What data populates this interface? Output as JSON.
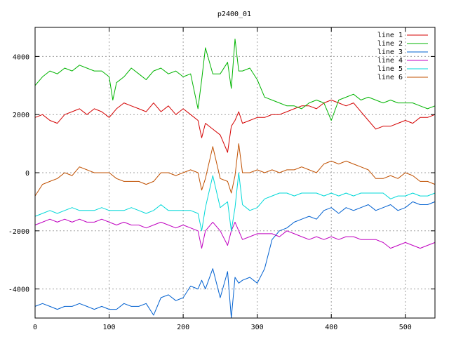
{
  "chart_data": {
    "type": "line",
    "title": "p2400_01",
    "xlabel": "",
    "ylabel": "",
    "xlim": [
      0,
      540
    ],
    "ylim": [
      -5000,
      5000
    ],
    "x_ticks": [
      0,
      100,
      200,
      300,
      400,
      500
    ],
    "y_ticks": [
      -4000,
      -2000,
      0,
      2000,
      4000
    ],
    "x_tick_labels": [
      "0",
      "100",
      "200",
      "300",
      "400",
      "500"
    ],
    "y_tick_labels": [
      "-4000",
      "-2000",
      "0",
      "2000",
      "4000"
    ],
    "grid": true,
    "legend_position": "top-right",
    "series": [
      {
        "name": "line 1",
        "color": "#d40000",
        "x": [
          0,
          10,
          20,
          30,
          40,
          50,
          60,
          70,
          80,
          90,
          100,
          110,
          120,
          130,
          140,
          150,
          160,
          170,
          180,
          190,
          200,
          210,
          220,
          225,
          230,
          240,
          250,
          260,
          265,
          270,
          275,
          280,
          290,
          300,
          310,
          320,
          330,
          340,
          350,
          360,
          370,
          380,
          390,
          400,
          410,
          420,
          430,
          440,
          450,
          460,
          470,
          480,
          490,
          500,
          510,
          520,
          530,
          540
        ],
        "values": [
          1900,
          2000,
          1800,
          1700,
          2000,
          2100,
          2200,
          2000,
          2200,
          2100,
          1900,
          2200,
          2400,
          2300,
          2200,
          2100,
          2400,
          2100,
          2300,
          2000,
          2200,
          2000,
          1800,
          1200,
          1700,
          1500,
          1300,
          700,
          1600,
          1800,
          2100,
          1700,
          1800,
          1900,
          1900,
          2000,
          2000,
          2100,
          2200,
          2300,
          2300,
          2200,
          2400,
          2500,
          2400,
          2300,
          2400,
          2100,
          1800,
          1500,
          1600,
          1600,
          1700,
          1800,
          1700,
          1900,
          1900,
          2000
        ]
      },
      {
        "name": "line 2",
        "color": "#00b400",
        "x": [
          0,
          10,
          20,
          30,
          40,
          50,
          60,
          70,
          80,
          90,
          100,
          105,
          110,
          120,
          130,
          140,
          150,
          160,
          170,
          180,
          190,
          200,
          210,
          220,
          225,
          230,
          240,
          250,
          260,
          265,
          270,
          275,
          280,
          290,
          300,
          310,
          320,
          330,
          340,
          350,
          360,
          370,
          380,
          390,
          400,
          410,
          420,
          430,
          440,
          450,
          460,
          470,
          480,
          490,
          500,
          510,
          520,
          530,
          540
        ],
        "values": [
          3000,
          3300,
          3500,
          3400,
          3600,
          3500,
          3700,
          3600,
          3500,
          3500,
          3300,
          2500,
          3100,
          3300,
          3600,
          3400,
          3200,
          3500,
          3600,
          3400,
          3500,
          3300,
          3400,
          2200,
          3200,
          4300,
          3400,
          3400,
          3800,
          2900,
          4600,
          3500,
          3500,
          3600,
          3200,
          2600,
          2500,
          2400,
          2300,
          2300,
          2200,
          2400,
          2500,
          2400,
          1800,
          2500,
          2600,
          2700,
          2500,
          2600,
          2500,
          2400,
          2500,
          2400,
          2400,
          2400,
          2300,
          2200,
          2300
        ]
      },
      {
        "name": "line 3",
        "color": "#0060d0",
        "x": [
          0,
          10,
          20,
          30,
          40,
          50,
          60,
          70,
          80,
          90,
          100,
          110,
          120,
          130,
          140,
          150,
          160,
          170,
          180,
          190,
          200,
          210,
          220,
          225,
          230,
          240,
          250,
          260,
          265,
          270,
          275,
          280,
          290,
          300,
          310,
          320,
          330,
          340,
          350,
          360,
          370,
          380,
          390,
          400,
          410,
          420,
          430,
          440,
          450,
          460,
          470,
          480,
          490,
          500,
          510,
          520,
          530,
          540
        ],
        "values": [
          -4600,
          -4500,
          -4600,
          -4700,
          -4600,
          -4600,
          -4500,
          -4600,
          -4700,
          -4600,
          -4700,
          -4700,
          -4500,
          -4600,
          -4600,
          -4500,
          -4900,
          -4300,
          -4200,
          -4400,
          -4300,
          -3900,
          -4000,
          -3700,
          -4000,
          -3300,
          -4300,
          -3400,
          -5000,
          -3600,
          -3800,
          -3700,
          -3600,
          -3800,
          -3300,
          -2300,
          -2000,
          -1900,
          -1700,
          -1600,
          -1500,
          -1600,
          -1300,
          -1200,
          -1400,
          -1200,
          -1300,
          -1200,
          -1100,
          -1300,
          -1200,
          -1100,
          -1300,
          -1200,
          -1000,
          -1100,
          -1100,
          -1000
        ]
      },
      {
        "name": "line 4",
        "color": "#c000c0",
        "x": [
          0,
          10,
          20,
          30,
          40,
          50,
          60,
          70,
          80,
          90,
          100,
          110,
          120,
          130,
          140,
          150,
          160,
          170,
          180,
          190,
          200,
          210,
          220,
          225,
          230,
          240,
          250,
          260,
          265,
          270,
          275,
          280,
          290,
          300,
          310,
          320,
          330,
          340,
          350,
          360,
          370,
          380,
          390,
          400,
          410,
          420,
          430,
          440,
          450,
          460,
          470,
          480,
          490,
          500,
          510,
          520,
          530,
          540
        ],
        "values": [
          -1800,
          -1700,
          -1600,
          -1700,
          -1600,
          -1700,
          -1600,
          -1700,
          -1700,
          -1600,
          -1700,
          -1800,
          -1700,
          -1800,
          -1800,
          -1900,
          -1800,
          -1700,
          -1800,
          -1900,
          -1800,
          -1900,
          -2000,
          -2600,
          -2000,
          -1700,
          -2000,
          -2500,
          -2000,
          -1700,
          -2000,
          -2300,
          -2200,
          -2100,
          -2100,
          -2100,
          -2200,
          -2000,
          -2100,
          -2200,
          -2300,
          -2200,
          -2300,
          -2200,
          -2300,
          -2200,
          -2200,
          -2300,
          -2300,
          -2300,
          -2400,
          -2600,
          -2500,
          -2400,
          -2500,
          -2600,
          -2500,
          -2400
        ]
      },
      {
        "name": "line 5",
        "color": "#00d8d8",
        "x": [
          0,
          10,
          20,
          30,
          40,
          50,
          60,
          70,
          80,
          90,
          100,
          110,
          120,
          130,
          140,
          150,
          160,
          170,
          180,
          190,
          200,
          210,
          220,
          225,
          230,
          240,
          250,
          260,
          265,
          270,
          275,
          280,
          290,
          300,
          310,
          320,
          330,
          340,
          350,
          360,
          370,
          380,
          390,
          400,
          410,
          420,
          430,
          440,
          450,
          460,
          470,
          480,
          490,
          500,
          510,
          520,
          530,
          540
        ],
        "values": [
          -1500,
          -1400,
          -1300,
          -1400,
          -1300,
          -1200,
          -1300,
          -1300,
          -1300,
          -1200,
          -1300,
          -1300,
          -1300,
          -1200,
          -1300,
          -1400,
          -1300,
          -1100,
          -1300,
          -1300,
          -1300,
          -1300,
          -1400,
          -2000,
          -1200,
          -100,
          -1200,
          -1000,
          -2000,
          -1200,
          0,
          -1100,
          -1300,
          -1200,
          -900,
          -800,
          -700,
          -700,
          -800,
          -700,
          -700,
          -700,
          -800,
          -700,
          -800,
          -700,
          -800,
          -700,
          -700,
          -700,
          -700,
          -900,
          -800,
          -800,
          -700,
          -800,
          -800,
          -700
        ]
      },
      {
        "name": "line 6",
        "color": "#c05000",
        "x": [
          0,
          10,
          20,
          30,
          40,
          50,
          60,
          70,
          80,
          90,
          100,
          110,
          120,
          130,
          140,
          150,
          160,
          170,
          180,
          190,
          200,
          210,
          220,
          225,
          230,
          240,
          250,
          260,
          265,
          270,
          275,
          280,
          290,
          300,
          310,
          320,
          330,
          340,
          350,
          360,
          370,
          380,
          390,
          400,
          410,
          420,
          430,
          440,
          450,
          460,
          470,
          480,
          490,
          500,
          510,
          520,
          530,
          540
        ],
        "values": [
          -800,
          -400,
          -300,
          -200,
          0,
          -100,
          200,
          100,
          0,
          0,
          0,
          -200,
          -300,
          -300,
          -300,
          -400,
          -300,
          0,
          0,
          -100,
          0,
          100,
          0,
          -600,
          -200,
          900,
          -200,
          -300,
          -700,
          -100,
          1000,
          0,
          0,
          100,
          0,
          100,
          0,
          100,
          100,
          200,
          100,
          0,
          300,
          400,
          300,
          400,
          300,
          200,
          100,
          -200,
          -200,
          -100,
          -200,
          0,
          -100,
          -300,
          -300,
          -400
        ]
      }
    ]
  }
}
